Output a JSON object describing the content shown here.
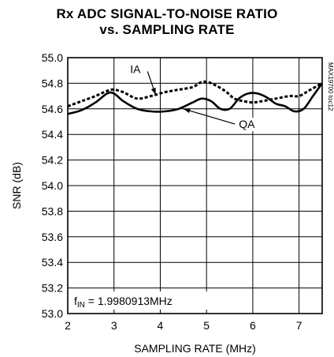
{
  "chart_data": {
    "type": "line",
    "title_line1": "Rx ADC SIGNAL-TO-NOISE RATIO",
    "title_line2": "vs. SAMPLING RATE",
    "xlabel": "SAMPLING RATE (MHz)",
    "ylabel": "SNR (dB)",
    "xlim": [
      2,
      7.5
    ],
    "ylim": [
      53.0,
      55.0
    ],
    "x_ticks": [
      2,
      3,
      4,
      5,
      6,
      7
    ],
    "y_ticks": [
      53.0,
      53.2,
      53.4,
      53.6,
      53.8,
      54.0,
      54.2,
      54.4,
      54.6,
      54.8,
      55.0
    ],
    "grid": true,
    "watermark": "MAX19700 toc12",
    "annotation_prefix": "f",
    "annotation_subscript": "IN",
    "annotation_value": " = 1.9980913MHz",
    "series": [
      {
        "name": "IA",
        "style": "dashed",
        "x": [
          2.0,
          2.3,
          2.6,
          2.85,
          3.0,
          3.2,
          3.5,
          3.8,
          4.1,
          4.4,
          4.7,
          4.9,
          5.1,
          5.4,
          5.6,
          5.8,
          6.0,
          6.2,
          6.5,
          6.8,
          7.0,
          7.2,
          7.4,
          7.5
        ],
        "y": [
          54.62,
          54.66,
          54.7,
          54.74,
          54.75,
          54.73,
          54.68,
          54.7,
          54.73,
          54.75,
          54.77,
          54.81,
          54.8,
          54.74,
          54.68,
          54.66,
          54.65,
          54.66,
          54.68,
          54.7,
          54.7,
          54.74,
          54.78,
          54.8
        ]
      },
      {
        "name": "QA",
        "style": "solid",
        "x": [
          2.0,
          2.3,
          2.6,
          2.85,
          3.0,
          3.2,
          3.5,
          3.8,
          4.1,
          4.4,
          4.7,
          4.9,
          5.1,
          5.3,
          5.5,
          5.7,
          5.9,
          6.1,
          6.3,
          6.5,
          6.7,
          6.9,
          7.1,
          7.3,
          7.5
        ],
        "y": [
          54.56,
          54.59,
          54.65,
          54.72,
          54.72,
          54.66,
          54.6,
          54.58,
          54.58,
          54.6,
          54.65,
          54.68,
          54.66,
          54.6,
          54.6,
          54.68,
          54.72,
          54.72,
          54.69,
          54.64,
          54.62,
          54.58,
          54.6,
          54.7,
          54.8
        ]
      }
    ],
    "callouts": [
      {
        "series": "IA",
        "label": "IA",
        "label_x": 3.35,
        "label_y": 54.88,
        "point_x": 3.9,
        "point_y": 54.71
      },
      {
        "series": "QA",
        "label": "QA",
        "label_x": 5.7,
        "label_y": 54.45,
        "point_x": 4.5,
        "point_y": 54.6
      }
    ]
  }
}
